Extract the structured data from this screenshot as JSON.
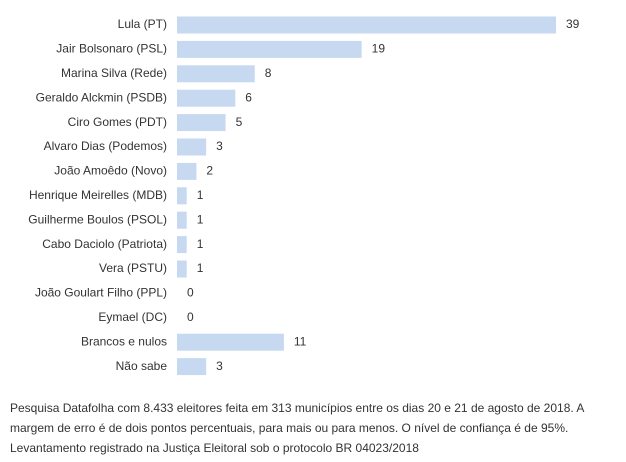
{
  "chart_data": {
    "type": "bar",
    "orientation": "horizontal",
    "categories": [
      "Lula (PT)",
      "Jair Bolsonaro (PSL)",
      "Marina Silva (Rede)",
      "Geraldo Alckmin (PSDB)",
      "Ciro Gomes (PDT)",
      "Alvaro Dias (Podemos)",
      "João Amoêdo (Novo)",
      "Henrique Meirelles (MDB)",
      "Guilherme Boulos (PSOL)",
      "Cabo Daciolo (Patriota)",
      "Vera (PSTU)",
      "João Goulart Filho (PPL)",
      "Eymael (DC)",
      "Brancos e nulos",
      "Não sabe"
    ],
    "values": [
      39,
      19,
      8,
      6,
      5,
      3,
      2,
      1,
      1,
      1,
      1,
      0,
      0,
      11,
      3
    ],
    "bar_color": "#c6d9f1",
    "xlim": [
      0,
      39
    ],
    "grid": false,
    "data_labels": true
  },
  "caption": {
    "line1": "Pesquisa Datafolha com 8.433 eleitores feita em 313 municípios entre os dias 20 e 21 de agosto de 2018. A",
    "line2": "margem de erro é de dois pontos percentuais, para mais ou para menos. O nível de confiança é de 95%.",
    "line3": "Levantamento registrado na Justiça Eleitoral sob o protocolo BR 04023/2018"
  }
}
